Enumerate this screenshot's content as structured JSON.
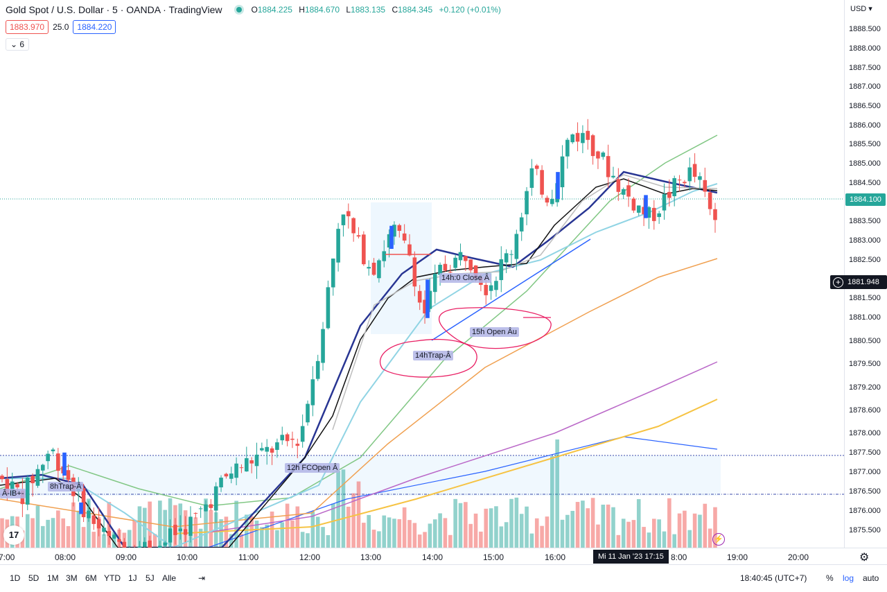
{
  "header": {
    "symbol_title": "Gold Spot / U.S. Dollar · 5 · OANDA · TradingView",
    "ohlc": {
      "o_key": "O",
      "o": "1884.225",
      "h_key": "H",
      "h": "1884.670",
      "l_key": "L",
      "l": "1883.135",
      "c_key": "C",
      "c": "1884.345",
      "change": "+0.120 (+0.01%)"
    },
    "sell_price": "1883.970",
    "spread": "25.0",
    "buy_price": "1884.220",
    "indicators_count": "6"
  },
  "price_axis": {
    "currency": "USD",
    "ticks": [
      "1888.500",
      "1888.000",
      "1887.500",
      "1887.000",
      "1886.500",
      "1886.000",
      "1885.500",
      "1885.000",
      "1884.500",
      "1884.000",
      "1883.500",
      "1883.000",
      "1882.500",
      "1882.000",
      "1881.500",
      "1881.000",
      "1880.500",
      "1879.500",
      "1879.200",
      "1878.600",
      "1878.000",
      "1877.500",
      "1877.000",
      "1876.500",
      "1876.000",
      "1875.500"
    ],
    "current_price_label": "1884.100",
    "crosshair_price_label": "1881.948"
  },
  "time_axis": {
    "ticks": [
      "7:00",
      "08:00",
      "09:00",
      "10:00",
      "11:00",
      "12:00",
      "13:00",
      "14:00",
      "15:00",
      "16:00",
      "8:00",
      "19:00",
      "20:00"
    ],
    "cursor_label": "Mi 11 Jan '23   17:15"
  },
  "bottom_toolbar": {
    "ranges": [
      "1D",
      "5D",
      "1M",
      "3M",
      "6M",
      "YTD",
      "1J",
      "5J",
      "Alle"
    ],
    "clock": "18:40:45 (UTC+7)",
    "percent": "%",
    "log": "log",
    "auto": "auto"
  },
  "annotations": {
    "trap_8h": "8hTrap-Â",
    "ib_left": "Â-IB+-",
    "open_12h": "12h FCOpen Â",
    "close_14h": "14h:0 Close Â",
    "open_15h": "15h Open Âu",
    "trap_14h": "14hTrap-Â"
  },
  "logo_text": "17",
  "chart_data": {
    "type": "candlestick",
    "interval": "5",
    "symbol": "XAUUSD",
    "source": "OANDA",
    "ylim": [
      1875.2,
      1888.8
    ],
    "candles_sampled": [
      {
        "t": "08:00",
        "o": 1877.0,
        "h": 1878.5,
        "l": 1876.0,
        "c": 1877.7
      },
      {
        "t": "09:00",
        "o": 1876.5,
        "h": 1876.9,
        "l": 1875.0,
        "c": 1875.3
      },
      {
        "t": "11:00",
        "o": 1876.8,
        "h": 1877.9,
        "l": 1876.6,
        "c": 1877.6
      },
      {
        "t": "12:00",
        "o": 1877.7,
        "h": 1880.9,
        "l": 1877.4,
        "c": 1880.6
      },
      {
        "t": "12:40",
        "o": 1881.5,
        "h": 1884.7,
        "l": 1881.3,
        "c": 1884.2
      },
      {
        "t": "13:00",
        "o": 1883.2,
        "h": 1883.6,
        "l": 1882.0,
        "c": 1882.3
      },
      {
        "t": "14:00",
        "o": 1882.2,
        "h": 1882.6,
        "l": 1881.2,
        "c": 1881.1
      },
      {
        "t": "15:00",
        "o": 1881.9,
        "h": 1883.2,
        "l": 1881.6,
        "c": 1882.7
      },
      {
        "t": "16:00",
        "o": 1884.1,
        "h": 1886.2,
        "l": 1883.9,
        "c": 1884.6
      },
      {
        "t": "17:00",
        "o": 1884.8,
        "h": 1886.7,
        "l": 1883.0,
        "c": 1884.0
      },
      {
        "t": "18:30",
        "o": 1884.0,
        "h": 1886.1,
        "l": 1883.4,
        "c": 1884.1
      }
    ]
  }
}
